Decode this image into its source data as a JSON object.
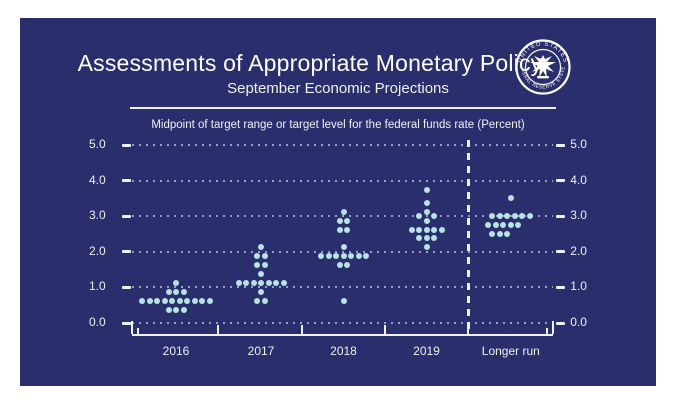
{
  "slide": {
    "title": "Assessments of Appropriate Monetary Policy",
    "subtitle": "September Economic Projections",
    "axis_note": "Midpoint of target range or target level for the federal funds rate (Percent)",
    "background_color": "#2a2e6c",
    "text_color": "#ffffff",
    "dot_color": "#b7e3e4",
    "seal": {
      "ring_text_top": "UNITED STATES",
      "ring_text_bottom": "FEDERAL RESERVE SYSTEM"
    }
  },
  "chart_data": {
    "type": "scatter",
    "title": "Assessments of Appropriate Monetary Policy",
    "subtitle": "September Economic Projections",
    "note": "Midpoint of target range or target level for the federal funds rate (Percent)",
    "ylabel": "Percent",
    "ylim": [
      0.0,
      5.0
    ],
    "yticks": [
      0.0,
      1.0,
      2.0,
      3.0,
      4.0,
      5.0
    ],
    "ytick_labels": [
      "0.0",
      "1.0",
      "2.0",
      "3.0",
      "4.0",
      "5.0"
    ],
    "ytick_labels_shown_on": "both sides",
    "grid": "dotted horizontal gridline at each whole percent",
    "categories": [
      "2016",
      "2017",
      "2018",
      "2019",
      "Longer run"
    ],
    "separator": "dashed vertical line between 2019 and Longer run",
    "legend": "none",
    "series": [
      {
        "category": "2016",
        "dots": [
          {
            "rate": 1.125,
            "count": 1
          },
          {
            "rate": 0.875,
            "count": 3
          },
          {
            "rate": 0.625,
            "count": 10
          },
          {
            "rate": 0.375,
            "count": 3
          }
        ]
      },
      {
        "category": "2017",
        "dots": [
          {
            "rate": 2.125,
            "count": 1
          },
          {
            "rate": 1.875,
            "count": 2
          },
          {
            "rate": 1.625,
            "count": 2
          },
          {
            "rate": 1.375,
            "count": 1
          },
          {
            "rate": 1.125,
            "count": 7
          },
          {
            "rate": 0.875,
            "count": 1
          },
          {
            "rate": 0.625,
            "count": 2
          }
        ]
      },
      {
        "category": "2018",
        "dots": [
          {
            "rate": 3.125,
            "count": 1
          },
          {
            "rate": 2.875,
            "count": 2
          },
          {
            "rate": 2.625,
            "count": 2
          },
          {
            "rate": 2.125,
            "count": 1
          },
          {
            "rate": 1.875,
            "count": 7
          },
          {
            "rate": 1.625,
            "count": 2
          },
          {
            "rate": 0.625,
            "count": 1
          }
        ]
      },
      {
        "category": "2019",
        "dots": [
          {
            "rate": 3.75,
            "count": 1
          },
          {
            "rate": 3.375,
            "count": 1
          },
          {
            "rate": 3.125,
            "count": 1
          },
          {
            "rate": 3.0,
            "count": 2,
            "spacing": 15
          },
          {
            "rate": 2.875,
            "count": 1
          },
          {
            "rate": 2.625,
            "count": 5
          },
          {
            "rate": 2.375,
            "count": 3
          },
          {
            "rate": 2.125,
            "count": 1
          }
        ]
      },
      {
        "category": "Longer run",
        "dots": [
          {
            "rate": 3.5,
            "count": 1
          },
          {
            "rate": 3.0,
            "count": 6
          },
          {
            "rate": 2.75,
            "count": 5,
            "shift": -7.5
          },
          {
            "rate": 2.5,
            "count": 3,
            "shift": -11
          }
        ]
      }
    ]
  }
}
